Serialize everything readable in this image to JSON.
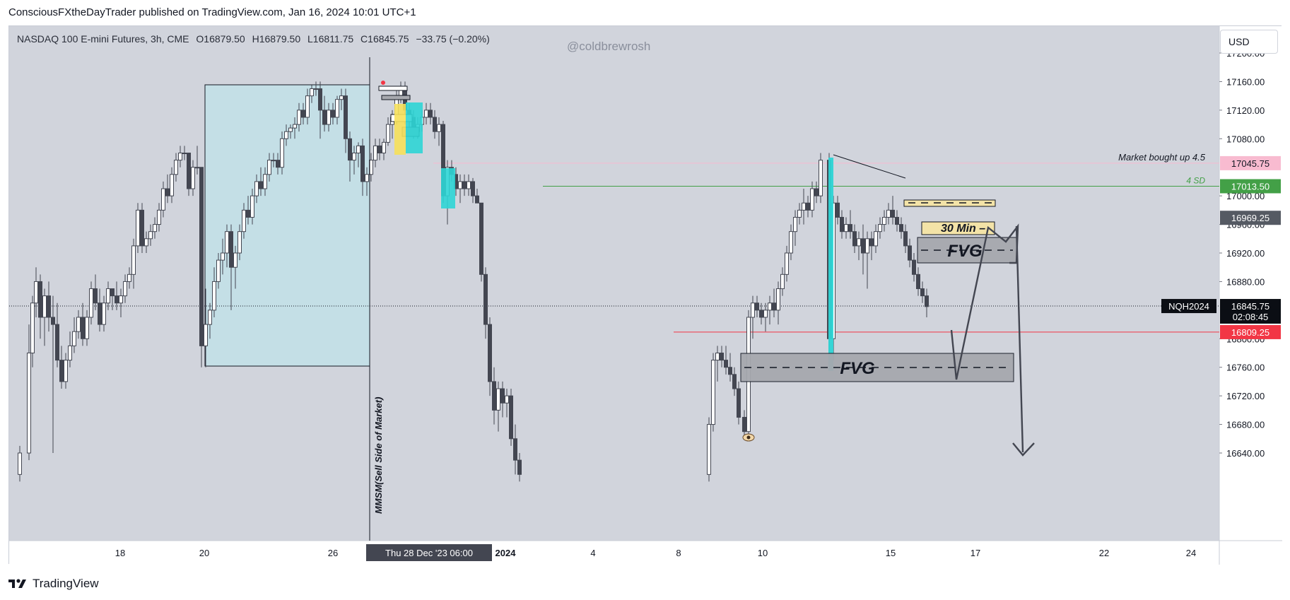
{
  "header": {
    "published_by": "ConsciousFXtheDayTrader published on TradingView.com, Jan 16, 2024 10:01 UTC+1"
  },
  "legend": {
    "instrument": "NASDAQ 100 E-mini Futures, 3h, CME",
    "open": "O16879.50",
    "high": "H16879.50",
    "low": "L16811.75",
    "close": "C16845.75",
    "change": "−33.75 (−0.20%)"
  },
  "watermark": "@coldbrewrosh",
  "currency_button": "USD",
  "footer": {
    "brand": "TradingView"
  },
  "colors": {
    "background": "#d1d4dc",
    "candle": "#434651",
    "range_box": "#c4dfe6",
    "cyan": "#2dd5d5",
    "yellow": "#f6e05a",
    "fvg_box": "#a6a8ae",
    "red_line": "#f23645",
    "green_line": "#43a047",
    "pink_line": "#f8bbd0"
  },
  "chart_data": {
    "type": "candlestick",
    "symbol": "NQH2024",
    "timeframe": "3h",
    "y_range": [
      16600,
      17235
    ],
    "x_tick_labels": [
      "18",
      "20",
      "26",
      "2024",
      "4",
      "8",
      "10",
      "15",
      "17",
      "22",
      "24"
    ],
    "y_tick_labels": [
      "17200.00",
      "17160.00",
      "17120.00",
      "17080.00",
      "17000.00",
      "16960.00",
      "16920.00",
      "16880.00",
      "16800.00",
      "16760.00",
      "16720.00",
      "16680.00",
      "16640.00"
    ],
    "crosshair_date_label": "Thu 28 Dec '23   06:00",
    "price_tags": [
      {
        "label": "17045.75",
        "price": 17045.75,
        "style": "pink"
      },
      {
        "label": "17013.50",
        "price": 17013.5,
        "style": "green"
      },
      {
        "label": "16969.25",
        "price": 16969.25,
        "style": "gray"
      },
      {
        "label": "16845.75",
        "price": 16845.75,
        "style": "dark"
      },
      {
        "label": "02:08:45",
        "price": 16831,
        "style": "dark"
      },
      {
        "label": "16809.25",
        "price": 16809.25,
        "style": "red"
      }
    ],
    "horizontal_lines": [
      {
        "name": "market-bought-up-line",
        "price": 17045.75,
        "from": 600,
        "label": "Market bought up 4.5"
      },
      {
        "name": "four-sd-line",
        "price": 17013.5,
        "from": 755,
        "label": "4 SD"
      },
      {
        "name": "low-line",
        "price": 16809.25,
        "from": 940
      },
      {
        "name": "last-price-line",
        "price": 16845.75,
        "from": 0
      }
    ],
    "annotations": {
      "vertical_label": "MMSM(Sell Side of Market)",
      "fvg_labels": [
        "FVG",
        "FVG"
      ],
      "thirty_min_label": "30 Min",
      "current_symbol_label": "NQH2024"
    },
    "candles": [
      [
        15,
        16610,
        16650,
        16600,
        16640
      ],
      [
        28,
        16640,
        16820,
        16630,
        16780
      ],
      [
        33,
        16780,
        16860,
        16760,
        16850
      ],
      [
        38,
        16850,
        16900,
        16830,
        16880
      ],
      [
        44,
        16880,
        16890,
        16800,
        16830
      ],
      [
        50,
        16830,
        16870,
        16790,
        16860
      ],
      [
        56,
        16860,
        16880,
        16810,
        16830
      ],
      [
        62,
        16830,
        16860,
        16640,
        16820
      ],
      [
        68,
        16820,
        16850,
        16760,
        16770
      ],
      [
        74,
        16770,
        16790,
        16730,
        16740
      ],
      [
        80,
        16740,
        16780,
        16730,
        16770
      ],
      [
        86,
        16770,
        16810,
        16760,
        16790
      ],
      [
        92,
        16790,
        16830,
        16780,
        16810
      ],
      [
        98,
        16810,
        16840,
        16800,
        16830
      ],
      [
        104,
        16830,
        16850,
        16790,
        16800
      ],
      [
        110,
        16800,
        16840,
        16790,
        16830
      ],
      [
        116,
        16830,
        16880,
        16820,
        16870
      ],
      [
        122,
        16870,
        16890,
        16840,
        16850
      ],
      [
        128,
        16850,
        16870,
        16810,
        16820
      ],
      [
        134,
        16820,
        16860,
        16810,
        16850
      ],
      [
        140,
        16850,
        16880,
        16840,
        16870
      ],
      [
        146,
        16870,
        16870,
        16840,
        16860
      ],
      [
        152,
        16860,
        16880,
        16840,
        16850
      ],
      [
        158,
        16850,
        16870,
        16830,
        16860
      ],
      [
        164,
        16860,
        16890,
        16850,
        16880
      ],
      [
        170,
        16880,
        16900,
        16870,
        16890
      ],
      [
        176,
        16890,
        16940,
        16870,
        16930
      ],
      [
        182,
        16930,
        16990,
        16920,
        16980
      ],
      [
        188,
        16980,
        16990,
        16920,
        16930
      ],
      [
        194,
        16930,
        16950,
        16920,
        16940
      ],
      [
        200,
        16940,
        16960,
        16930,
        16950
      ],
      [
        206,
        16950,
        16970,
        16940,
        16960
      ],
      [
        212,
        16960,
        16990,
        16950,
        16980
      ],
      [
        218,
        16980,
        17020,
        16970,
        17010
      ],
      [
        224,
        17010,
        17030,
        16990,
        17000
      ],
      [
        230,
        17000,
        17040,
        16990,
        17030
      ],
      [
        236,
        17030,
        17060,
        17020,
        17050
      ],
      [
        242,
        17050,
        17070,
        17040,
        17060
      ],
      [
        248,
        17060,
        17070,
        17050,
        17060
      ],
      [
        254,
        17060,
        17060,
        17000,
        17010
      ],
      [
        260,
        17010,
        17050,
        17000,
        17040
      ],
      [
        266,
        17040,
        17070,
        17030,
        17040
      ],
      [
        272,
        17040,
        17040,
        16760,
        16790
      ],
      [
        278,
        16790,
        16870,
        16760,
        16820
      ],
      [
        284,
        16820,
        16850,
        16800,
        16840
      ],
      [
        290,
        16840,
        16900,
        16830,
        16880
      ],
      [
        296,
        16880,
        16920,
        16870,
        16910
      ],
      [
        302,
        16910,
        16940,
        16890,
        16920
      ],
      [
        308,
        16920,
        16960,
        16900,
        16950
      ],
      [
        314,
        16950,
        16960,
        16840,
        16900
      ],
      [
        320,
        16900,
        16930,
        16870,
        16920
      ],
      [
        326,
        16920,
        16960,
        16910,
        16950
      ],
      [
        332,
        16950,
        16990,
        16940,
        16980
      ],
      [
        338,
        16980,
        17000,
        16960,
        16970
      ],
      [
        344,
        16970,
        17010,
        16960,
        17000
      ],
      [
        350,
        17000,
        17030,
        16990,
        17020
      ],
      [
        356,
        17020,
        17040,
        17000,
        17010
      ],
      [
        362,
        17010,
        17040,
        17000,
        17030
      ],
      [
        368,
        17030,
        17060,
        17020,
        17050
      ],
      [
        374,
        17050,
        17060,
        17040,
        17050
      ],
      [
        380,
        17050,
        17060,
        17030,
        17040
      ],
      [
        386,
        17040,
        17090,
        17030,
        17080
      ],
      [
        392,
        17080,
        17100,
        17070,
        17090
      ],
      [
        398,
        17090,
        17100,
        17080,
        17095
      ],
      [
        404,
        17095,
        17110,
        17080,
        17100
      ],
      [
        410,
        17100,
        17130,
        17090,
        17120
      ],
      [
        416,
        17120,
        17130,
        17100,
        17110
      ],
      [
        422,
        17110,
        17150,
        17100,
        17140
      ],
      [
        428,
        17140,
        17155,
        17130,
        17150
      ],
      [
        434,
        17150,
        17160,
        17140,
        17150
      ],
      [
        440,
        17150,
        17160,
        17080,
        17120
      ],
      [
        446,
        17120,
        17140,
        17090,
        17100
      ],
      [
        452,
        17100,
        17130,
        17090,
        17120
      ],
      [
        458,
        17120,
        17130,
        17100,
        17110
      ],
      [
        464,
        17110,
        17140,
        17100,
        17135
      ],
      [
        470,
        17135,
        17150,
        17120,
        17140
      ],
      [
        476,
        17140,
        17150,
        17060,
        17080
      ],
      [
        482,
        17080,
        17090,
        17020,
        17050
      ],
      [
        488,
        17050,
        17070,
        17030,
        17060
      ],
      [
        494,
        17060,
        17075,
        17040,
        17070
      ],
      [
        500,
        17070,
        17080,
        17000,
        17020
      ],
      [
        506,
        17020,
        17040,
        17000,
        17030
      ],
      [
        512,
        17030,
        17060,
        17020,
        17050
      ],
      [
        518,
        17050,
        17080,
        17040,
        17070
      ],
      [
        524,
        17070,
        17080,
        17050,
        17060
      ],
      [
        530,
        17060,
        17080,
        17050,
        17075
      ],
      [
        536,
        17075,
        17110,
        17070,
        17100
      ],
      [
        542,
        17100,
        17120,
        17080,
        17110
      ],
      [
        548,
        17110,
        17150,
        17100,
        17140
      ],
      [
        554,
        17140,
        17160,
        17130,
        17150
      ],
      [
        560,
        17150,
        17160,
        17100,
        17120
      ],
      [
        566,
        17120,
        17130,
        17090,
        17110
      ],
      [
        572,
        17110,
        17120,
        17080,
        17090
      ],
      [
        578,
        17090,
        17110,
        17080,
        17100
      ],
      [
        584,
        17100,
        17120,
        17090,
        17110
      ],
      [
        590,
        17110,
        17130,
        17100,
        17120
      ],
      [
        596,
        17120,
        17130,
        17100,
        17110
      ],
      [
        602,
        17110,
        17120,
        17080,
        17090
      ],
      [
        608,
        17090,
        17110,
        17070,
        17100
      ],
      [
        614,
        17100,
        17105,
        16990,
        17000
      ],
      [
        620,
        17000,
        17050,
        16960,
        17040
      ],
      [
        626,
        17040,
        17050,
        17020,
        17030
      ],
      [
        632,
        17030,
        17040,
        17000,
        17010
      ],
      [
        638,
        17010,
        17030,
        16990,
        17020
      ],
      [
        644,
        17020,
        17030,
        17000,
        17010
      ],
      [
        650,
        17010,
        17030,
        17000,
        17020
      ],
      [
        656,
        17020,
        17025,
        16990,
        17000
      ],
      [
        662,
        17000,
        17010,
        16990,
        16990
      ],
      [
        668,
        16990,
        16990,
        16880,
        16890
      ],
      [
        674,
        16890,
        16900,
        16800,
        16820
      ],
      [
        680,
        16820,
        16830,
        16720,
        16740
      ],
      [
        686,
        16740,
        16760,
        16680,
        16700
      ],
      [
        692,
        16700,
        16740,
        16670,
        16730
      ],
      [
        698,
        16730,
        16740,
        16690,
        16710
      ],
      [
        704,
        16710,
        16730,
        16690,
        16720
      ],
      [
        710,
        16720,
        16730,
        16650,
        16660
      ],
      [
        716,
        16660,
        16680,
        16610,
        16630
      ],
      [
        722,
        16630,
        16640,
        16600,
        16610
      ],
      [
        990,
        16610,
        16690,
        16600,
        16680
      ],
      [
        996,
        16680,
        16780,
        16670,
        16770
      ],
      [
        1002,
        16770,
        16790,
        16740,
        16780
      ],
      [
        1008,
        16780,
        16790,
        16760,
        16770
      ],
      [
        1014,
        16770,
        16790,
        16750,
        16760
      ],
      [
        1020,
        16760,
        16780,
        16740,
        16750
      ],
      [
        1026,
        16750,
        16760,
        16720,
        16730
      ],
      [
        1032,
        16730,
        16740,
        16680,
        16690
      ],
      [
        1040,
        16690,
        16700,
        16660,
        16670
      ],
      [
        1046,
        16670,
        16840,
        16660,
        16830
      ],
      [
        1052,
        16830,
        16860,
        16800,
        16850
      ],
      [
        1058,
        16850,
        16860,
        16830,
        16840
      ],
      [
        1064,
        16840,
        16850,
        16820,
        16830
      ],
      [
        1070,
        16830,
        16850,
        16810,
        16840
      ],
      [
        1076,
        16840,
        16860,
        16820,
        16850
      ],
      [
        1082,
        16850,
        16870,
        16830,
        16840
      ],
      [
        1088,
        16840,
        16880,
        16820,
        16870
      ],
      [
        1094,
        16870,
        16900,
        16860,
        16890
      ],
      [
        1100,
        16890,
        16930,
        16880,
        16920
      ],
      [
        1106,
        16920,
        16960,
        16910,
        16950
      ],
      [
        1112,
        16950,
        16980,
        16930,
        16970
      ],
      [
        1118,
        16970,
        16990,
        16960,
        16980
      ],
      [
        1124,
        16980,
        17010,
        16960,
        16990
      ],
      [
        1130,
        16990,
        17000,
        16970,
        16980
      ],
      [
        1136,
        16980,
        17020,
        16970,
        17010
      ],
      [
        1142,
        17010,
        17020,
        16990,
        17000
      ],
      [
        1148,
        17000,
        17060,
        16990,
        17050
      ],
      [
        1160,
        17050,
        17060,
        16780,
        16800
      ],
      [
        1166,
        16800,
        17000,
        16770,
        16990
      ],
      [
        1172,
        16990,
        17000,
        16960,
        16970
      ],
      [
        1178,
        16970,
        16980,
        16940,
        16950
      ],
      [
        1184,
        16950,
        16970,
        16940,
        16960
      ],
      [
        1190,
        16960,
        16980,
        16940,
        16950
      ],
      [
        1196,
        16950,
        16960,
        16920,
        16930
      ],
      [
        1202,
        16930,
        16950,
        16910,
        16940
      ],
      [
        1208,
        16940,
        16960,
        16890,
        16920
      ],
      [
        1214,
        16920,
        16950,
        16870,
        16940
      ],
      [
        1220,
        16940,
        16950,
        16910,
        16930
      ],
      [
        1226,
        16930,
        16960,
        16920,
        16950
      ],
      [
        1232,
        16950,
        16970,
        16940,
        16960
      ],
      [
        1238,
        16960,
        16980,
        16950,
        16970
      ],
      [
        1244,
        16970,
        16990,
        16960,
        16980
      ],
      [
        1250,
        16980,
        17000,
        16960,
        16970
      ],
      [
        1256,
        16970,
        16980,
        16950,
        16960
      ],
      [
        1262,
        16960,
        16970,
        16940,
        16950
      ],
      [
        1268,
        16950,
        16960,
        16920,
        16930
      ],
      [
        1274,
        16930,
        16940,
        16900,
        16910
      ],
      [
        1280,
        16910,
        16920,
        16880,
        16890
      ],
      [
        1286,
        16890,
        16900,
        16860,
        16870
      ],
      [
        1292,
        16870,
        16880,
        16850,
        16860
      ],
      [
        1298,
        16860,
        16870,
        16830,
        16845
      ]
    ]
  }
}
